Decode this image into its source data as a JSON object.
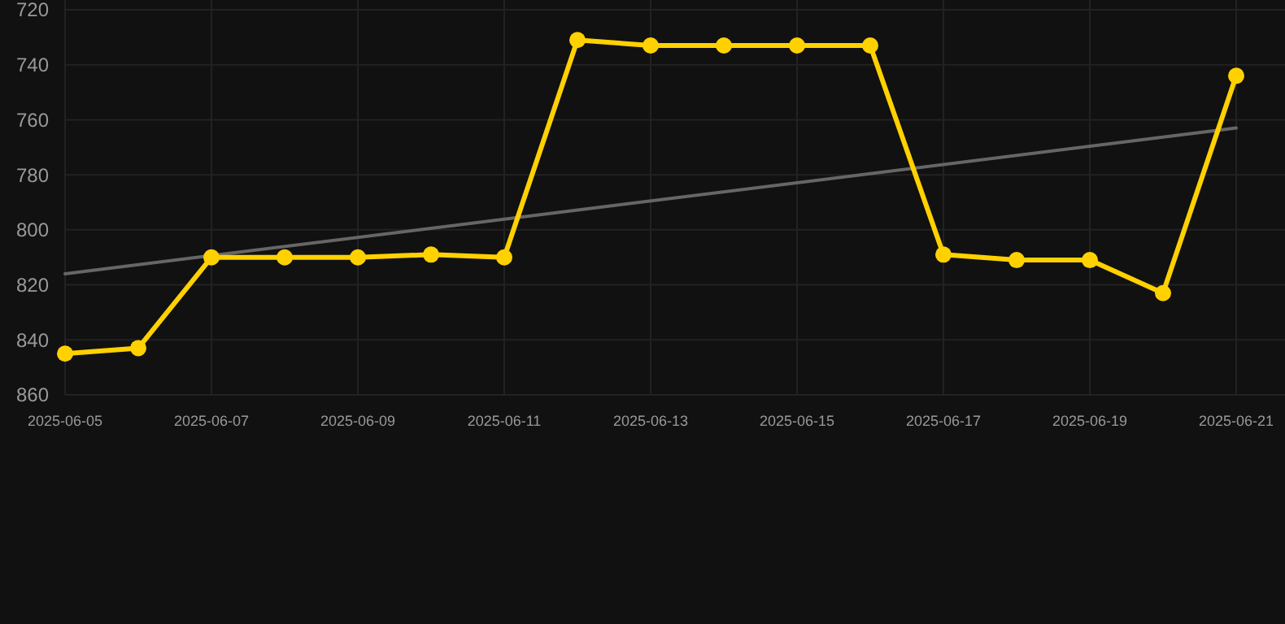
{
  "chart_data": {
    "type": "line",
    "x": [
      "2025-06-05",
      "2025-06-06",
      "2025-06-07",
      "2025-06-08",
      "2025-06-09",
      "2025-06-10",
      "2025-06-11",
      "2025-06-12",
      "2025-06-13",
      "2025-06-14",
      "2025-06-15",
      "2025-06-16",
      "2025-06-17",
      "2025-06-18",
      "2025-06-19",
      "2025-06-20",
      "2025-06-21"
    ],
    "series": [
      {
        "color": "#ffd100",
        "marker": "circle",
        "values": [
          845,
          843,
          810,
          810,
          810,
          809,
          810,
          731,
          733,
          733,
          733,
          733,
          809,
          811,
          811,
          823,
          744
        ]
      },
      {
        "type": "line",
        "color": "#666666",
        "marker": "none",
        "x": [
          "2025-06-05",
          "2025-06-21"
        ],
        "values": [
          816,
          763
        ]
      }
    ],
    "xlim": [
      "2025-06-05",
      "2025-06-21"
    ],
    "xticks": [
      {
        "value": "2025-06-05",
        "label": "2025-06-05"
      },
      {
        "value": "2025-06-07",
        "label": "2025-06-07"
      },
      {
        "value": "2025-06-09",
        "label": "2025-06-09"
      },
      {
        "value": "2025-06-11",
        "label": "2025-06-11"
      },
      {
        "value": "2025-06-13",
        "label": "2025-06-13"
      },
      {
        "value": "2025-06-15",
        "label": "2025-06-15"
      },
      {
        "value": "2025-06-17",
        "label": "2025-06-17"
      },
      {
        "value": "2025-06-19",
        "label": "2025-06-19"
      },
      {
        "value": "2025-06-21",
        "label": "2025-06-21"
      }
    ],
    "ylim": [
      860,
      720
    ],
    "yticks": [
      720,
      740,
      760,
      780,
      800,
      820,
      840,
      860
    ],
    "grid": true
  }
}
